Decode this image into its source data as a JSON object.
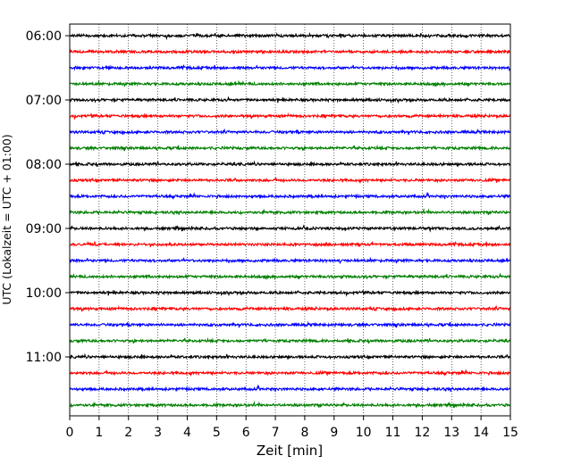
{
  "chart_data": {
    "type": "line",
    "title": "",
    "xlabel": "Zeit  [min]",
    "ylabel": "UTC (Lokalzeit = UTC + 01:00)",
    "xlim": [
      0,
      15
    ],
    "x_ticks": [
      0,
      1,
      2,
      3,
      4,
      5,
      6,
      7,
      8,
      9,
      10,
      11,
      12,
      13,
      14,
      15
    ],
    "y_tick_labels": [
      "06:00",
      "07:00",
      "08:00",
      "09:00",
      "10:00",
      "11:00"
    ],
    "grid": "vertical-dotted",
    "trace_interval_minutes": 15,
    "trace_colors": [
      "#000000",
      "#ff0000",
      "#0000ff",
      "#007f00"
    ],
    "series": [
      {
        "start": "06:00",
        "color": "#000000"
      },
      {
        "start": "06:15",
        "color": "#ff0000"
      },
      {
        "start": "06:30",
        "color": "#0000ff"
      },
      {
        "start": "06:45",
        "color": "#007f00"
      },
      {
        "start": "07:00",
        "color": "#000000"
      },
      {
        "start": "07:15",
        "color": "#ff0000"
      },
      {
        "start": "07:30",
        "color": "#0000ff"
      },
      {
        "start": "07:45",
        "color": "#007f00"
      },
      {
        "start": "08:00",
        "color": "#000000"
      },
      {
        "start": "08:15",
        "color": "#ff0000"
      },
      {
        "start": "08:30",
        "color": "#0000ff"
      },
      {
        "start": "08:45",
        "color": "#007f00"
      },
      {
        "start": "09:00",
        "color": "#000000"
      },
      {
        "start": "09:15",
        "color": "#ff0000"
      },
      {
        "start": "09:30",
        "color": "#0000ff"
      },
      {
        "start": "09:45",
        "color": "#007f00"
      },
      {
        "start": "10:00",
        "color": "#000000"
      },
      {
        "start": "10:15",
        "color": "#ff0000"
      },
      {
        "start": "10:30",
        "color": "#0000ff"
      },
      {
        "start": "10:45",
        "color": "#007f00"
      },
      {
        "start": "11:00",
        "color": "#000000"
      },
      {
        "start": "11:15",
        "color": "#ff0000"
      },
      {
        "start": "11:30",
        "color": "#0000ff"
      },
      {
        "start": "11:45",
        "color": "#007f00"
      }
    ]
  }
}
